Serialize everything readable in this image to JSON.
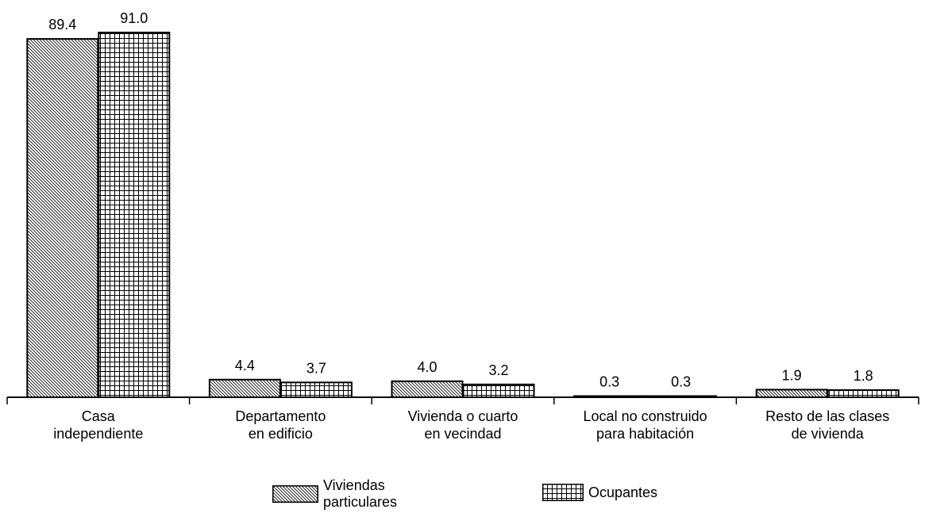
{
  "chart_data": {
    "type": "bar",
    "title": "",
    "xlabel": "",
    "ylabel": "",
    "categories": [
      [
        "Casa",
        "independiente"
      ],
      [
        "Departamento",
        "en edificio"
      ],
      [
        "Vivienda o cuarto",
        "en vecindad"
      ],
      [
        "Local no construido",
        "para habitación"
      ],
      [
        "Resto de las clases",
        "de vivienda"
      ]
    ],
    "series": [
      {
        "name": "Viviendas particulares",
        "pattern": "diagonal-hatch",
        "values": [
          89.4,
          4.4,
          4.0,
          0.3,
          1.9
        ],
        "labels": [
          "89.4",
          "4.4",
          "4.0",
          "0.3",
          "1.9"
        ]
      },
      {
        "name": "Ocupantes",
        "pattern": "grid-hatch",
        "values": [
          91.0,
          3.7,
          3.2,
          0.3,
          1.8
        ],
        "labels": [
          "91.0",
          "3.7",
          "3.2",
          "0.3",
          "1.8"
        ]
      }
    ],
    "ylim": [
      0,
      100
    ],
    "grid": false,
    "legend": "bottom"
  },
  "legend": {
    "series1_line1": "Viviendas",
    "series1_line2": "particulares",
    "series2": "Ocupantes"
  },
  "colors": {
    "stroke": "#000000",
    "background": "#ffffff"
  }
}
